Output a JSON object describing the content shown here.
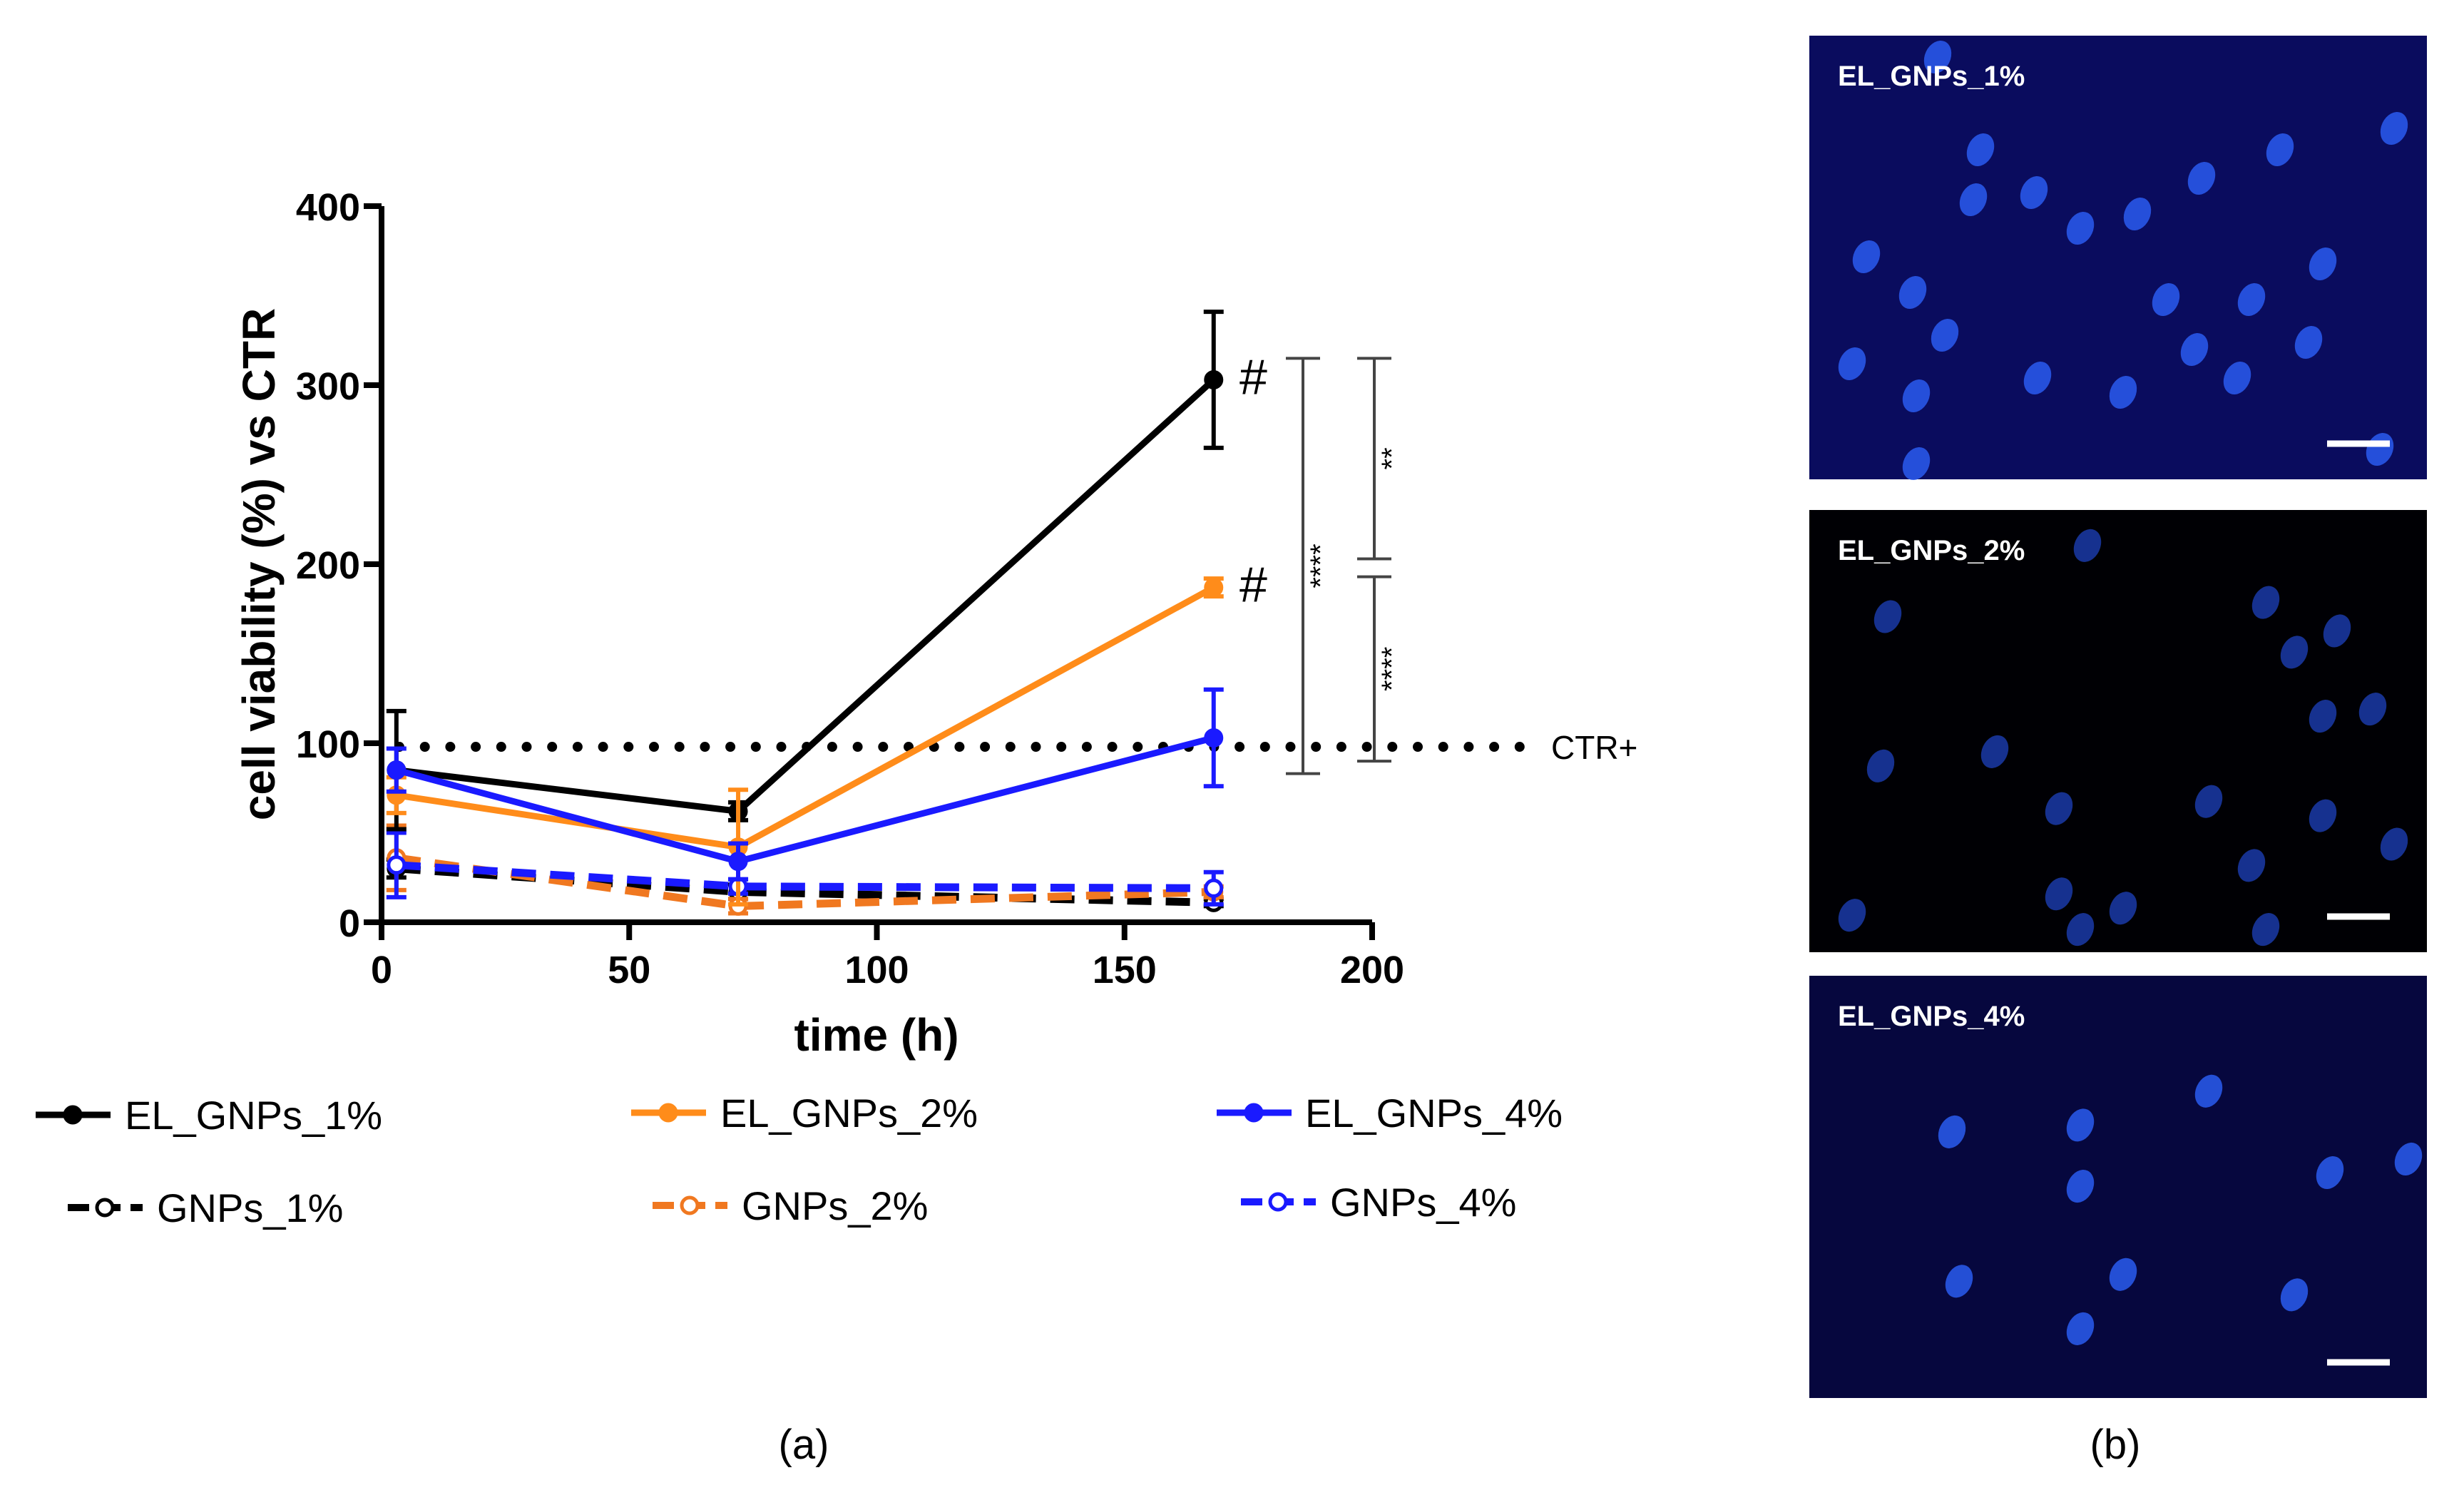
{
  "chart_data": {
    "type": "line",
    "title": "",
    "xlabel": "time (h)",
    "ylabel": "cell viability (%) vs CTR",
    "xlim": [
      0,
      200
    ],
    "ylim": [
      0,
      400
    ],
    "xticks": [
      0,
      50,
      100,
      150,
      200
    ],
    "yticks": [
      0,
      100,
      200,
      300,
      400
    ],
    "x": [
      3,
      72,
      168
    ],
    "reference_line": {
      "label": "CTR+",
      "y": 98
    },
    "series": [
      {
        "name": "EL_GNPs_1%",
        "color": "#000000",
        "dashed": false,
        "filled": true,
        "values": [
          85,
          62,
          303
        ],
        "errors": [
          33,
          5,
          38
        ]
      },
      {
        "name": "EL_GNPs_2%",
        "color": "#ff8c1a",
        "dashed": false,
        "filled": true,
        "values": [
          71,
          42,
          187
        ],
        "errors": [
          10,
          32,
          5
        ]
      },
      {
        "name": "EL_GNPs_4%",
        "color": "#1a1aff",
        "dashed": false,
        "filled": true,
        "values": [
          85,
          34,
          103
        ],
        "errors": [
          12,
          10,
          27
        ]
      },
      {
        "name": "GNPs_1%",
        "color": "#000000",
        "dashed": true,
        "filled": false,
        "values": [
          30,
          17,
          11
        ],
        "errors": [
          5,
          4,
          2
        ]
      },
      {
        "name": "GNPs_2%",
        "color": "#f07820",
        "dashed": true,
        "filled": false,
        "values": [
          36,
          9,
          17
        ],
        "errors": [
          18,
          4,
          3
        ]
      },
      {
        "name": "GNPs_4%",
        "color": "#1a1aff",
        "dashed": true,
        "filled": false,
        "values": [
          32,
          20,
          19
        ],
        "errors": [
          18,
          4,
          9
        ]
      }
    ],
    "annotations": [
      {
        "text": "#",
        "series": "EL_GNPs_1%"
      },
      {
        "text": "#",
        "series": "EL_GNPs_2%"
      }
    ],
    "significance": [
      {
        "text": "****",
        "from": 315,
        "to": 83
      },
      {
        "text": "**",
        "from": 315,
        "to": 203
      },
      {
        "text": "****",
        "from": 193,
        "to": 90
      }
    ]
  },
  "captions": {
    "a": "(a)",
    "b": "(b)"
  },
  "panels": [
    {
      "label": "EL_GNPs_1%",
      "background": "#0a0c5e"
    },
    {
      "label": "EL_GNPs_2%",
      "background": "#000004"
    },
    {
      "label": "EL_GNPs_4%",
      "background": "#06073e"
    }
  ]
}
